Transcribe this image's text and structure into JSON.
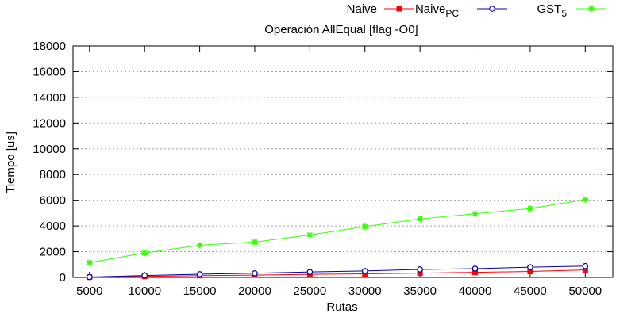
{
  "chart_data": {
    "type": "line",
    "title": "Operación AllEqual [flag -O0]",
    "xlabel": "Rutas",
    "ylabel": "Tiempo [us]",
    "x": [
      5000,
      10000,
      15000,
      20000,
      25000,
      30000,
      35000,
      40000,
      45000,
      50000
    ],
    "x_ticks": [
      "5000",
      "10000",
      "15000",
      "20000",
      "25000",
      "30000",
      "35000",
      "40000",
      "45000",
      "50000"
    ],
    "y_ticks": [
      "0",
      "2000",
      "4000",
      "6000",
      "8000",
      "10000",
      "12000",
      "14000",
      "16000",
      "18000"
    ],
    "xlim": [
      3500,
      52500
    ],
    "ylim": [
      0,
      18000
    ],
    "grid": "horizontal dotted",
    "legend_position": "top-right, above plot",
    "series": [
      {
        "name": "Naive",
        "name_sub": "",
        "color": "#ff0000",
        "marker": "filled-square",
        "values": [
          20,
          80,
          140,
          180,
          240,
          280,
          330,
          390,
          460,
          580
        ]
      },
      {
        "name": "Naive",
        "name_sub": "PC",
        "color": "#0000aa",
        "marker": "open-circle",
        "values": [
          30,
          150,
          250,
          320,
          420,
          500,
          620,
          680,
          790,
          880
        ]
      },
      {
        "name": "GST",
        "name_sub": "5",
        "color": "#33ff00",
        "marker": "star",
        "values": [
          1150,
          1900,
          2500,
          2750,
          3300,
          3950,
          4550,
          4950,
          5350,
          6050
        ]
      }
    ]
  }
}
